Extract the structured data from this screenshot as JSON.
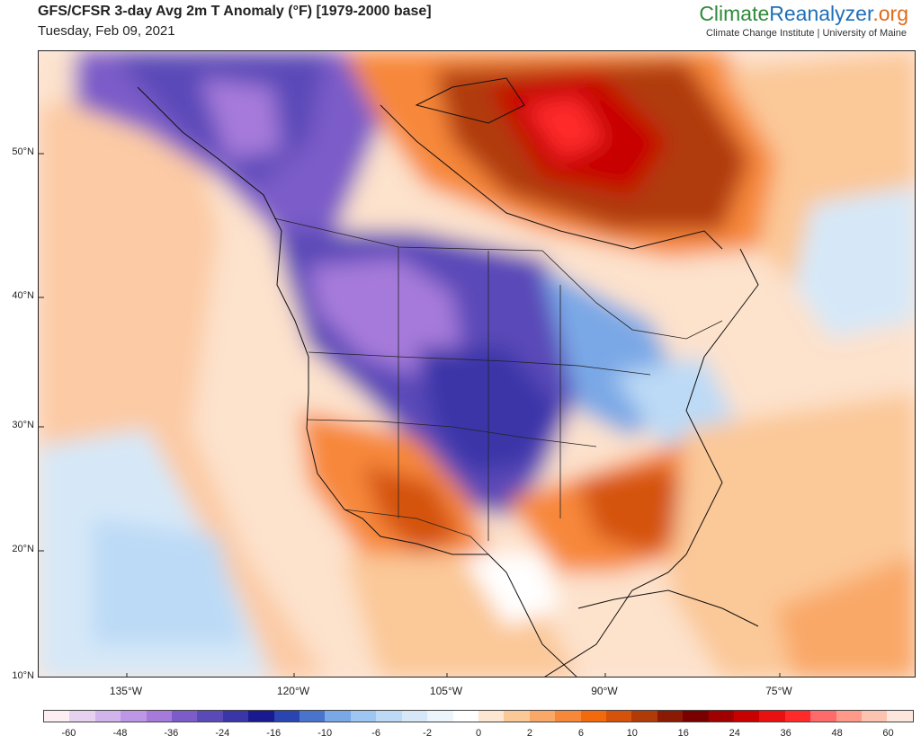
{
  "header": {
    "title": "GFS/CFSR 3-day Avg 2m T Anomaly (°F) [1979-2000 base]",
    "date": "Tuesday, Feb 09, 2021",
    "brand_part1": "Climate",
    "brand_part2": "Reanalyzer",
    "brand_part3": ".org",
    "brand_sub": "Climate Change Institute | University of Maine"
  },
  "map": {
    "lat_labels": [
      "50°N",
      "40°N",
      "30°N",
      "20°N",
      "10°N"
    ],
    "lon_labels": [
      "135°W",
      "120°W",
      "105°W",
      "90°W",
      "75°W"
    ]
  },
  "colorbar": {
    "colors": [
      "#fdeef4",
      "#e6d2f0",
      "#d2b4ec",
      "#be96e6",
      "#a67ada",
      "#7c5cc8",
      "#5a4ab8",
      "#3a36a8",
      "#1a1a90",
      "#2a44b0",
      "#4a74cc",
      "#7aa8e6",
      "#9ec6f2",
      "#bcdaf6",
      "#d6e8f8",
      "#ecf4fc",
      "#ffffff",
      "#fde6d2",
      "#fbc898",
      "#f9a868",
      "#f7883a",
      "#f26a0c",
      "#d4520a",
      "#b03a08",
      "#8a1a04",
      "#7a0000",
      "#a00000",
      "#c80000",
      "#e81010",
      "#ff2a2a",
      "#ff6a6a",
      "#ff9a8a",
      "#fcc4b0",
      "#fde6de"
    ],
    "labels": [
      "-60",
      "-48",
      "-36",
      "-24",
      "-16",
      "-10",
      "-6",
      "-2",
      "0",
      "2",
      "6",
      "10",
      "16",
      "24",
      "36",
      "48",
      "60"
    ]
  }
}
